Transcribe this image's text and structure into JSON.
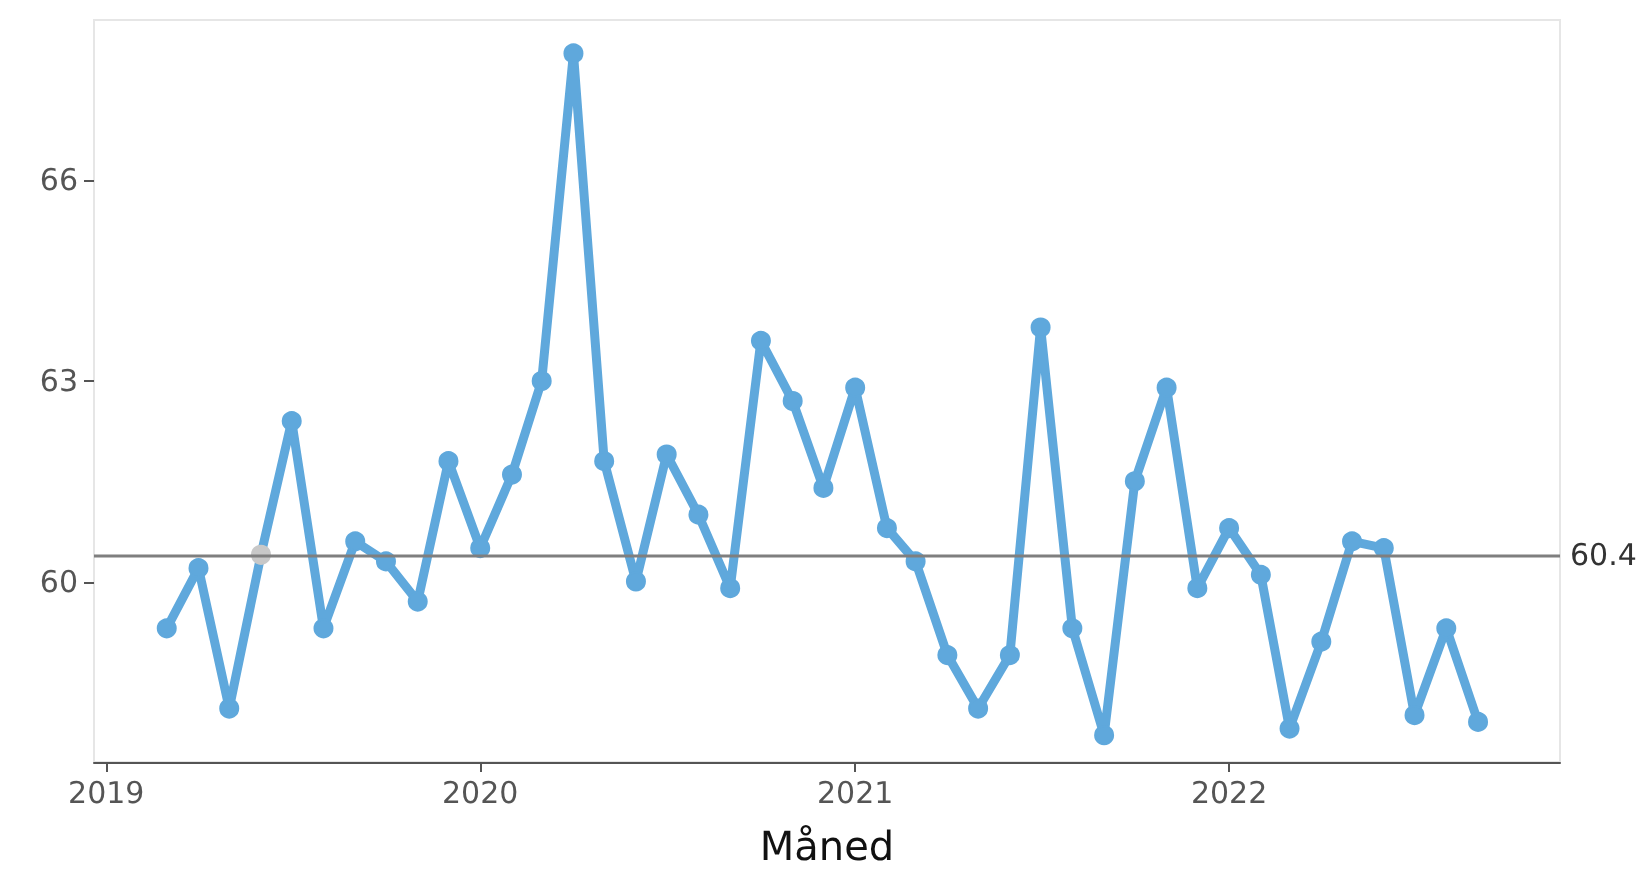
{
  "chart_data": {
    "type": "line",
    "xlabel": "Måned",
    "x": [
      "2019-03",
      "2019-04",
      "2019-05",
      "2019-06",
      "2019-07",
      "2019-08",
      "2019-09",
      "2019-10",
      "2019-11",
      "2019-12",
      "2020-01",
      "2020-02",
      "2020-03",
      "2020-04",
      "2020-05",
      "2020-06",
      "2020-07",
      "2020-08",
      "2020-09",
      "2020-10",
      "2020-11",
      "2020-12",
      "2021-01",
      "2021-02",
      "2021-03",
      "2021-04",
      "2021-05",
      "2021-06",
      "2021-07",
      "2021-08",
      "2021-09",
      "2021-10",
      "2021-11",
      "2021-12",
      "2022-01",
      "2022-02",
      "2022-03",
      "2022-04",
      "2022-05",
      "2022-06",
      "2022-07",
      "2022-08",
      "2022-09"
    ],
    "series": [
      {
        "color": "#5fa8dc",
        "colors": [
          "#5fa8dc",
          "#5fa8dc",
          "#5fa8dc",
          "#c8c8c8",
          "#5fa8dc",
          "#5fa8dc",
          "#5fa8dc",
          "#5fa8dc",
          "#5fa8dc",
          "#5fa8dc",
          "#5fa8dc",
          "#5fa8dc",
          "#5fa8dc",
          "#5fa8dc",
          "#5fa8dc",
          "#5fa8dc",
          "#5fa8dc",
          "#5fa8dc",
          "#5fa8dc",
          "#5fa8dc",
          "#5fa8dc",
          "#5fa8dc",
          "#5fa8dc",
          "#5fa8dc",
          "#5fa8dc",
          "#5fa8dc",
          "#5fa8dc",
          "#5fa8dc",
          "#5fa8dc",
          "#5fa8dc",
          "#5fa8dc",
          "#5fa8dc",
          "#5fa8dc",
          "#5fa8dc",
          "#5fa8dc",
          "#5fa8dc",
          "#5fa8dc",
          "#5fa8dc",
          "#5fa8dc",
          "#5fa8dc",
          "#5fa8dc",
          "#5fa8dc",
          "#5fa8dc"
        ],
        "values": [
          59.3,
          60.2,
          58.1,
          60.4,
          62.4,
          59.3,
          60.6,
          60.3,
          59.7,
          61.8,
          60.5,
          61.6,
          63.0,
          67.9,
          61.8,
          60.0,
          61.9,
          61.0,
          59.9,
          63.6,
          62.7,
          61.4,
          62.9,
          60.8,
          60.3,
          58.9,
          58.1,
          58.9,
          63.8,
          59.3,
          57.7,
          61.5,
          62.9,
          59.9,
          60.8,
          60.1,
          57.8,
          59.1,
          60.6,
          60.5,
          58.0,
          59.3,
          57.9
        ]
      }
    ],
    "xlim": [
      "2018-12-20",
      "2022-11-20"
    ],
    "xticks": [
      {
        "value": "2019-01-01",
        "label": "2019"
      },
      {
        "value": "2020-01-01",
        "label": "2020"
      },
      {
        "value": "2021-01-01",
        "label": "2021"
      },
      {
        "value": "2022-01-01",
        "label": "2022"
      }
    ],
    "ylim": [
      57.3,
      68.4
    ],
    "yticks": [
      60,
      63,
      66
    ],
    "ref_lines": [
      {
        "axis": "y",
        "value": 60.4,
        "label": "60.4",
        "color": "#7f7f7f"
      }
    ],
    "marker": "circle",
    "line_style": "solid"
  }
}
